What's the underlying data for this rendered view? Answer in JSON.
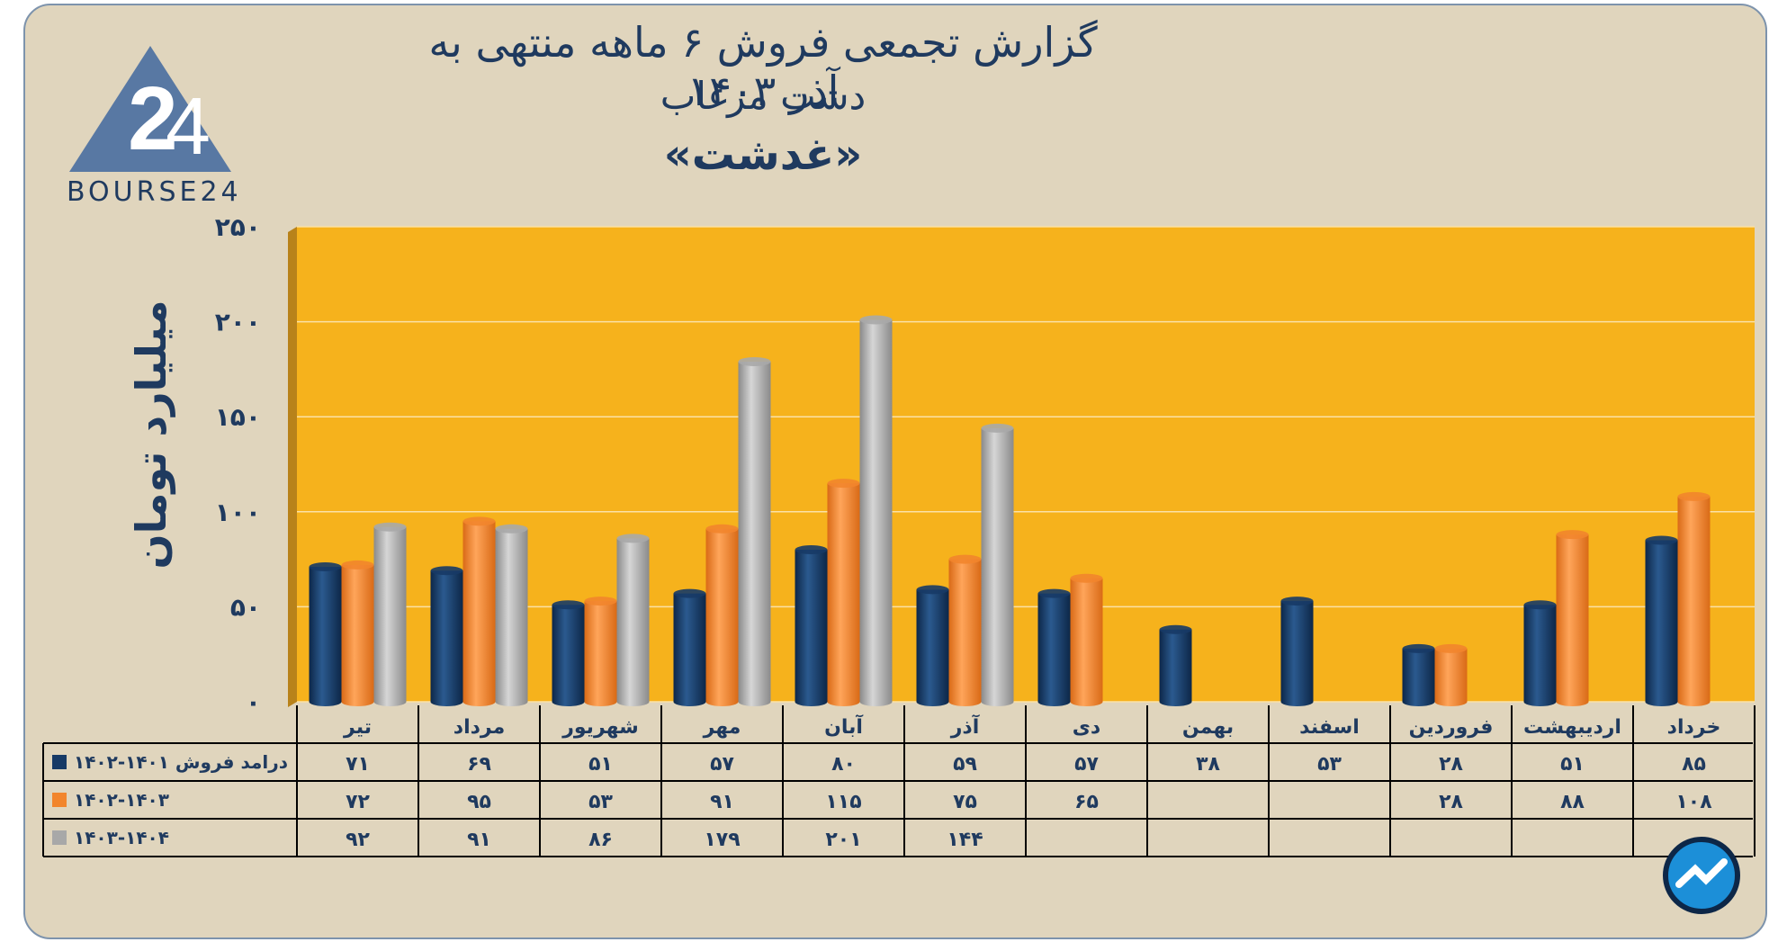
{
  "title": "گزارش تجمعی فروش ۶ ماهه منتهی به آذر ۱۴۰۳",
  "subtitle": "دشت مرغاب",
  "company": "«غدشت»",
  "logo_text": "BOURSE24",
  "colors": {
    "plot_bg": "#f6b21c",
    "card_bg": "#e0d5bd",
    "text": "#1f3a5f",
    "series": [
      "#173a66",
      "#f2852c",
      "#a8a8a8"
    ]
  },
  "chart_data": {
    "type": "bar",
    "ylabel": "میلیارد تومان",
    "ylim": [
      0,
      250
    ],
    "y_ticks": [
      0,
      50,
      100,
      150,
      200,
      250
    ],
    "y_tick_labels": [
      "۰",
      "۵۰",
      "۱۰۰",
      "۱۵۰",
      "۲۰۰",
      "۲۵۰"
    ],
    "categories": [
      "تیر",
      "مرداد",
      "شهریور",
      "مهر",
      "آبان",
      "آذر",
      "دی",
      "بهمن",
      "اسفند",
      "فروردین",
      "اردیبهشت",
      "خرداد"
    ],
    "series": [
      {
        "name": "درامد فروش ۱۴۰۱-۱۴۰۲",
        "values": [
          71,
          69,
          51,
          57,
          80,
          59,
          57,
          38,
          53,
          28,
          51,
          85
        ],
        "labels": [
          "۷۱",
          "۶۹",
          "۵۱",
          "۵۷",
          "۸۰",
          "۵۹",
          "۵۷",
          "۳۸",
          "۵۳",
          "۲۸",
          "۵۱",
          "۸۵"
        ]
      },
      {
        "name": "۱۴۰۲-۱۴۰۳",
        "values": [
          72,
          95,
          53,
          91,
          115,
          75,
          65,
          null,
          null,
          28,
          88,
          108
        ],
        "labels": [
          "۷۲",
          "۹۵",
          "۵۳",
          "۹۱",
          "۱۱۵",
          "۷۵",
          "۶۵",
          "",
          "",
          "۲۸",
          "۸۸",
          "۱۰۸"
        ]
      },
      {
        "name": "۱۴۰۳-۱۴۰۴",
        "values": [
          92,
          91,
          86,
          179,
          201,
          144,
          null,
          null,
          null,
          null,
          null,
          null
        ],
        "labels": [
          "۹۲",
          "۹۱",
          "۸۶",
          "۱۷۹",
          "۲۰۱",
          "۱۴۴",
          "",
          "",
          "",
          "",
          "",
          ""
        ]
      }
    ]
  }
}
